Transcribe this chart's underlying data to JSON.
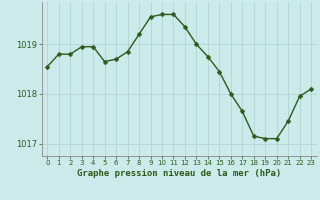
{
  "x": [
    0,
    1,
    2,
    3,
    4,
    5,
    6,
    7,
    8,
    9,
    10,
    11,
    12,
    13,
    14,
    15,
    16,
    17,
    18,
    19,
    20,
    21,
    22,
    23
  ],
  "y": [
    1018.55,
    1018.8,
    1018.8,
    1018.95,
    1018.95,
    1018.65,
    1018.7,
    1018.85,
    1019.2,
    1019.55,
    1019.6,
    1019.6,
    1019.35,
    1019.0,
    1018.75,
    1018.45,
    1018.0,
    1017.65,
    1017.15,
    1017.1,
    1017.1,
    1017.45,
    1017.95,
    1018.1
  ],
  "line_color": "#2d5a1b",
  "marker": "D",
  "marker_size": 2.5,
  "background_color": "#cceaea",
  "grid_color": "#aacfcf",
  "axis_line_color": "#888888",
  "xlabel": "Graphe pression niveau de la mer (hPa)",
  "xlabel_color": "#2d5a1b",
  "tick_color": "#2d5a1b",
  "ylim": [
    1016.75,
    1019.85
  ],
  "yticks": [
    1017,
    1018,
    1019
  ],
  "xlim": [
    -0.5,
    23.5
  ],
  "xticks": [
    0,
    1,
    2,
    3,
    4,
    5,
    6,
    7,
    8,
    9,
    10,
    11,
    12,
    13,
    14,
    15,
    16,
    17,
    18,
    19,
    20,
    21,
    22,
    23
  ]
}
